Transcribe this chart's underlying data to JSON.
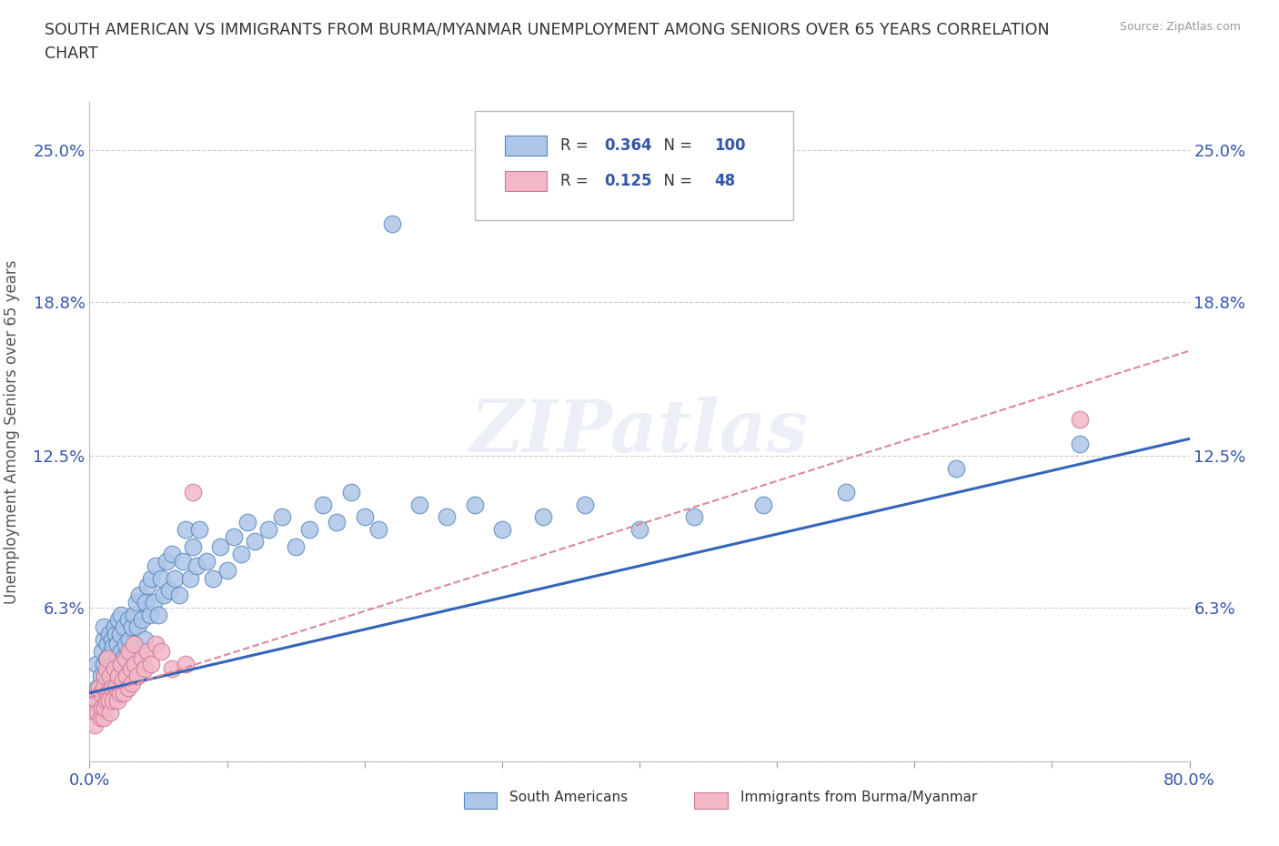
{
  "title": "SOUTH AMERICAN VS IMMIGRANTS FROM BURMA/MYANMAR UNEMPLOYMENT AMONG SENIORS OVER 65 YEARS CORRELATION\nCHART",
  "source": "Source: ZipAtlas.com",
  "ylabel": "Unemployment Among Seniors over 65 years",
  "xlim": [
    0,
    0.8
  ],
  "ylim": [
    0,
    0.27
  ],
  "yticks": [
    0.0,
    0.063,
    0.125,
    0.188,
    0.25
  ],
  "ytick_labels": [
    "",
    "6.3%",
    "12.5%",
    "18.8%",
    "25.0%"
  ],
  "xtick_pos": [
    0.0,
    0.1,
    0.2,
    0.3,
    0.4,
    0.5,
    0.6,
    0.7,
    0.8
  ],
  "xtick_labels": [
    "0.0%",
    "",
    "",
    "",
    "",
    "",
    "",
    "",
    "80.0%"
  ],
  "series1_color": "#aec6e8",
  "series1_edge": "#5588bb",
  "series2_color": "#f2b8c6",
  "series2_edge": "#cc7799",
  "trend1_color": "#3366bb",
  "trend2_color": "#dd8899",
  "R1": 0.364,
  "N1": 100,
  "R2": 0.125,
  "N2": 48,
  "watermark_text": "ZIPatlas",
  "legend_label1": "South Americans",
  "legend_label2": "Immigrants from Burma/Myanmar",
  "sa_x": [
    0.005,
    0.006,
    0.007,
    0.008,
    0.009,
    0.01,
    0.01,
    0.01,
    0.01,
    0.011,
    0.012,
    0.012,
    0.013,
    0.013,
    0.014,
    0.014,
    0.015,
    0.015,
    0.016,
    0.016,
    0.017,
    0.017,
    0.018,
    0.018,
    0.019,
    0.019,
    0.02,
    0.02,
    0.021,
    0.021,
    0.022,
    0.022,
    0.023,
    0.023,
    0.024,
    0.025,
    0.025,
    0.026,
    0.027,
    0.028,
    0.029,
    0.03,
    0.031,
    0.032,
    0.033,
    0.034,
    0.035,
    0.036,
    0.038,
    0.04,
    0.041,
    0.042,
    0.044,
    0.045,
    0.047,
    0.048,
    0.05,
    0.052,
    0.054,
    0.056,
    0.058,
    0.06,
    0.062,
    0.065,
    0.068,
    0.07,
    0.073,
    0.075,
    0.078,
    0.08,
    0.085,
    0.09,
    0.095,
    0.1,
    0.105,
    0.11,
    0.115,
    0.12,
    0.13,
    0.14,
    0.15,
    0.16,
    0.17,
    0.18,
    0.19,
    0.2,
    0.21,
    0.22,
    0.24,
    0.26,
    0.28,
    0.3,
    0.33,
    0.36,
    0.4,
    0.44,
    0.49,
    0.55,
    0.63,
    0.72
  ],
  "sa_y": [
    0.04,
    0.03,
    0.025,
    0.035,
    0.045,
    0.03,
    0.04,
    0.05,
    0.055,
    0.035,
    0.028,
    0.042,
    0.033,
    0.048,
    0.038,
    0.052,
    0.03,
    0.044,
    0.036,
    0.05,
    0.033,
    0.047,
    0.04,
    0.055,
    0.038,
    0.052,
    0.035,
    0.048,
    0.042,
    0.058,
    0.038,
    0.052,
    0.045,
    0.06,
    0.042,
    0.038,
    0.055,
    0.048,
    0.042,
    0.058,
    0.05,
    0.045,
    0.055,
    0.06,
    0.048,
    0.065,
    0.055,
    0.068,
    0.058,
    0.05,
    0.065,
    0.072,
    0.06,
    0.075,
    0.065,
    0.08,
    0.06,
    0.075,
    0.068,
    0.082,
    0.07,
    0.085,
    0.075,
    0.068,
    0.082,
    0.095,
    0.075,
    0.088,
    0.08,
    0.095,
    0.082,
    0.075,
    0.088,
    0.078,
    0.092,
    0.085,
    0.098,
    0.09,
    0.095,
    0.1,
    0.088,
    0.095,
    0.105,
    0.098,
    0.11,
    0.1,
    0.095,
    0.22,
    0.105,
    0.1,
    0.105,
    0.095,
    0.1,
    0.105,
    0.095,
    0.1,
    0.105,
    0.11,
    0.12,
    0.13
  ],
  "bu_x": [
    0.003,
    0.004,
    0.005,
    0.006,
    0.007,
    0.008,
    0.008,
    0.009,
    0.01,
    0.01,
    0.011,
    0.011,
    0.012,
    0.012,
    0.013,
    0.013,
    0.014,
    0.015,
    0.015,
    0.016,
    0.017,
    0.018,
    0.019,
    0.02,
    0.021,
    0.022,
    0.023,
    0.024,
    0.025,
    0.026,
    0.027,
    0.028,
    0.029,
    0.03,
    0.031,
    0.032,
    0.033,
    0.035,
    0.038,
    0.04,
    0.042,
    0.045,
    0.048,
    0.052,
    0.06,
    0.07,
    0.075,
    0.72
  ],
  "bu_y": [
    0.02,
    0.015,
    0.025,
    0.02,
    0.03,
    0.018,
    0.028,
    0.022,
    0.018,
    0.03,
    0.022,
    0.035,
    0.025,
    0.038,
    0.028,
    0.042,
    0.025,
    0.02,
    0.035,
    0.03,
    0.025,
    0.038,
    0.03,
    0.025,
    0.035,
    0.028,
    0.04,
    0.033,
    0.028,
    0.042,
    0.035,
    0.03,
    0.045,
    0.038,
    0.032,
    0.048,
    0.04,
    0.035,
    0.042,
    0.038,
    0.045,
    0.04,
    0.048,
    0.045,
    0.038,
    0.04,
    0.11,
    0.14
  ]
}
